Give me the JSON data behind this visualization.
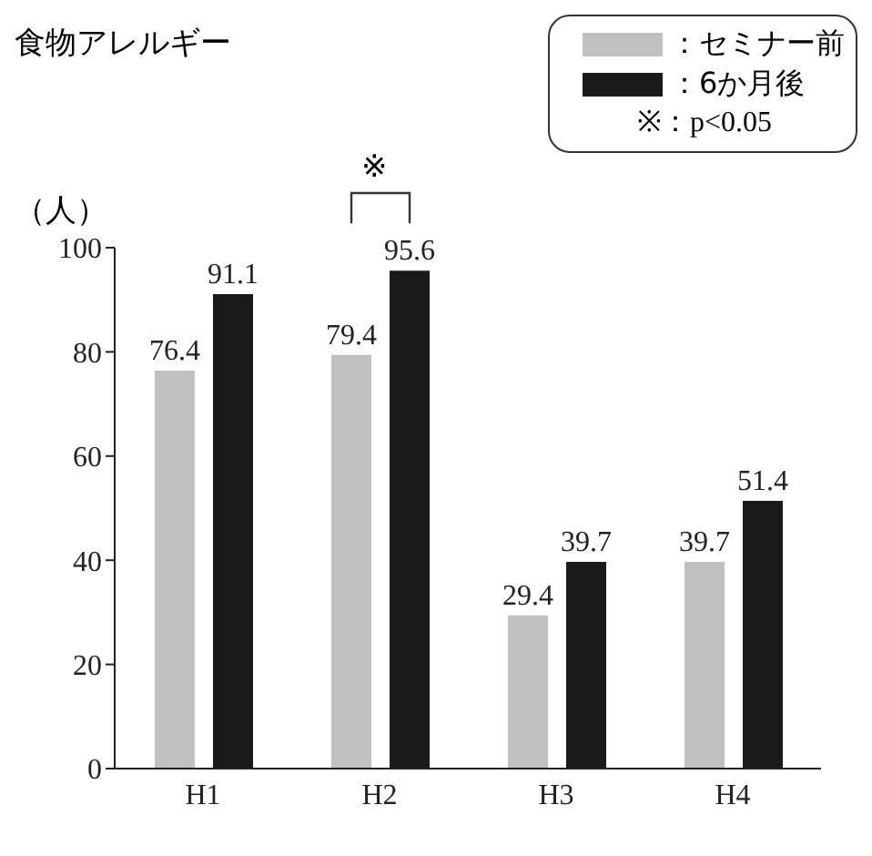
{
  "chart_data": {
    "type": "bar",
    "title": "食物アレルギー",
    "ylabel": "（人）",
    "categories": [
      "H1",
      "H2",
      "H3",
      "H4"
    ],
    "series": [
      {
        "name": "：セミナー前",
        "color": "#c0c0c0",
        "values": [
          76.4,
          79.4,
          29.4,
          39.7
        ]
      },
      {
        "name": "：6か月後",
        "color": "#1a1a1a",
        "values": [
          91.1,
          95.6,
          39.7,
          51.4
        ]
      }
    ],
    "ylim": [
      0,
      100
    ],
    "yticks": [
      0,
      20,
      40,
      60,
      80,
      100
    ],
    "legend": "top right",
    "data_labels": true,
    "annotations": [
      "※",
      "※：p<0.05"
    ]
  }
}
